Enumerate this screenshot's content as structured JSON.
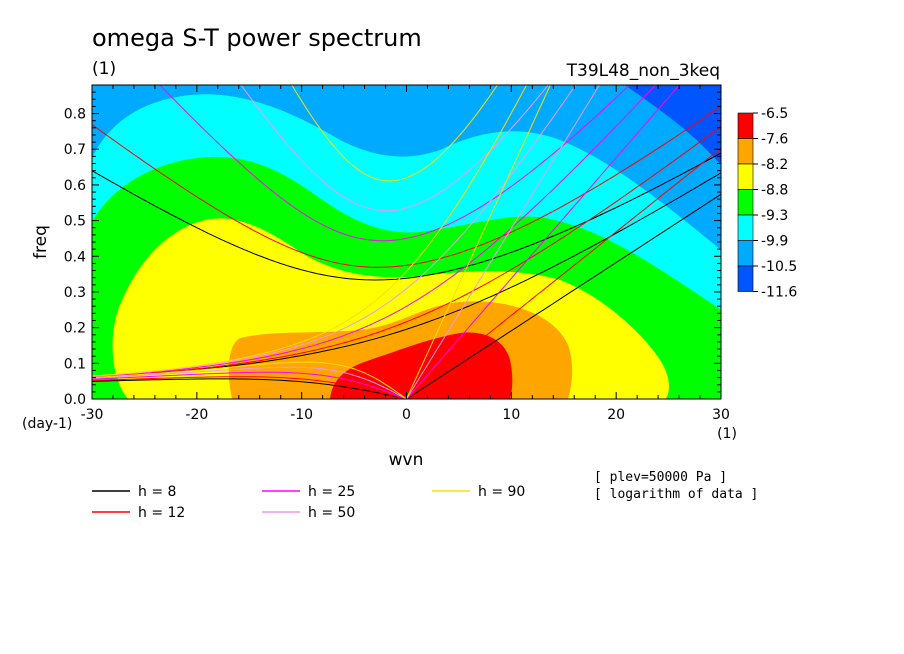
{
  "chart_data": {
    "type": "heatmap",
    "title": "omega S-T power spectrum",
    "title_sub": "(1)",
    "run_name": "T39L48_non_3keq",
    "xlabel": "wvn",
    "xunit": "(1)",
    "ylabel": "freq",
    "yunit": "(day-1)",
    "xlim": [
      -30,
      30
    ],
    "ylim": [
      0,
      0.88
    ],
    "xticks": [
      -30,
      -20,
      -10,
      0,
      10,
      20,
      30
    ],
    "yticks": [
      0.0,
      0.1,
      0.2,
      0.3,
      0.4,
      0.5,
      0.6,
      0.7,
      0.8
    ],
    "grid": false,
    "colorbar": {
      "placement": "right",
      "colors": [
        "#ff0000",
        "#ffa500",
        "#ffff00",
        "#00ff00",
        "#00ffff",
        "#00aaff",
        "#0055ff"
      ],
      "labels": [
        "-6.5",
        "-7.6",
        "-8.2",
        "-8.8",
        "-9.3",
        "-9.9",
        "-10.5",
        "-11.6"
      ]
    },
    "regions": [
      {
        "level": "-11.6 to -10.5",
        "color": "#0055ff",
        "area": "upper-right corner"
      },
      {
        "level": "-10.5 to -9.9",
        "color": "#00aaff",
        "area": "top"
      },
      {
        "level": "-9.9 to -9.3",
        "color": "#00ffff",
        "area": "upper band"
      },
      {
        "level": "-9.3 to -8.8",
        "color": "#00ff00",
        "area": "middle band"
      },
      {
        "level": "-8.8 to -8.2",
        "color": "#ffff00",
        "area": "lower band"
      },
      {
        "level": "-8.2 to -7.6",
        "color": "#ffa500",
        "area": "near origin"
      },
      {
        "level": "-7.6 to -6.5",
        "color": "#ff0000",
        "area": "eastward low frequency, k 0 to 10"
      }
    ],
    "dispersion_curves": {
      "series": [
        {
          "name": "h =  8",
          "h": 8,
          "color": "#000000"
        },
        {
          "name": "h = 12",
          "h": 12,
          "color": "#ff0000"
        },
        {
          "name": "h = 25",
          "h": 25,
          "color": "#ff00ff"
        },
        {
          "name": "h = 50",
          "h": 50,
          "color": "#ee99ee"
        },
        {
          "name": "h = 90",
          "h": 90,
          "color": "#ffdd00"
        }
      ]
    },
    "legend_placement": "bottom",
    "annotations": [
      "[ plev=50000 Pa ]",
      "[ logarithm of data ]"
    ]
  }
}
